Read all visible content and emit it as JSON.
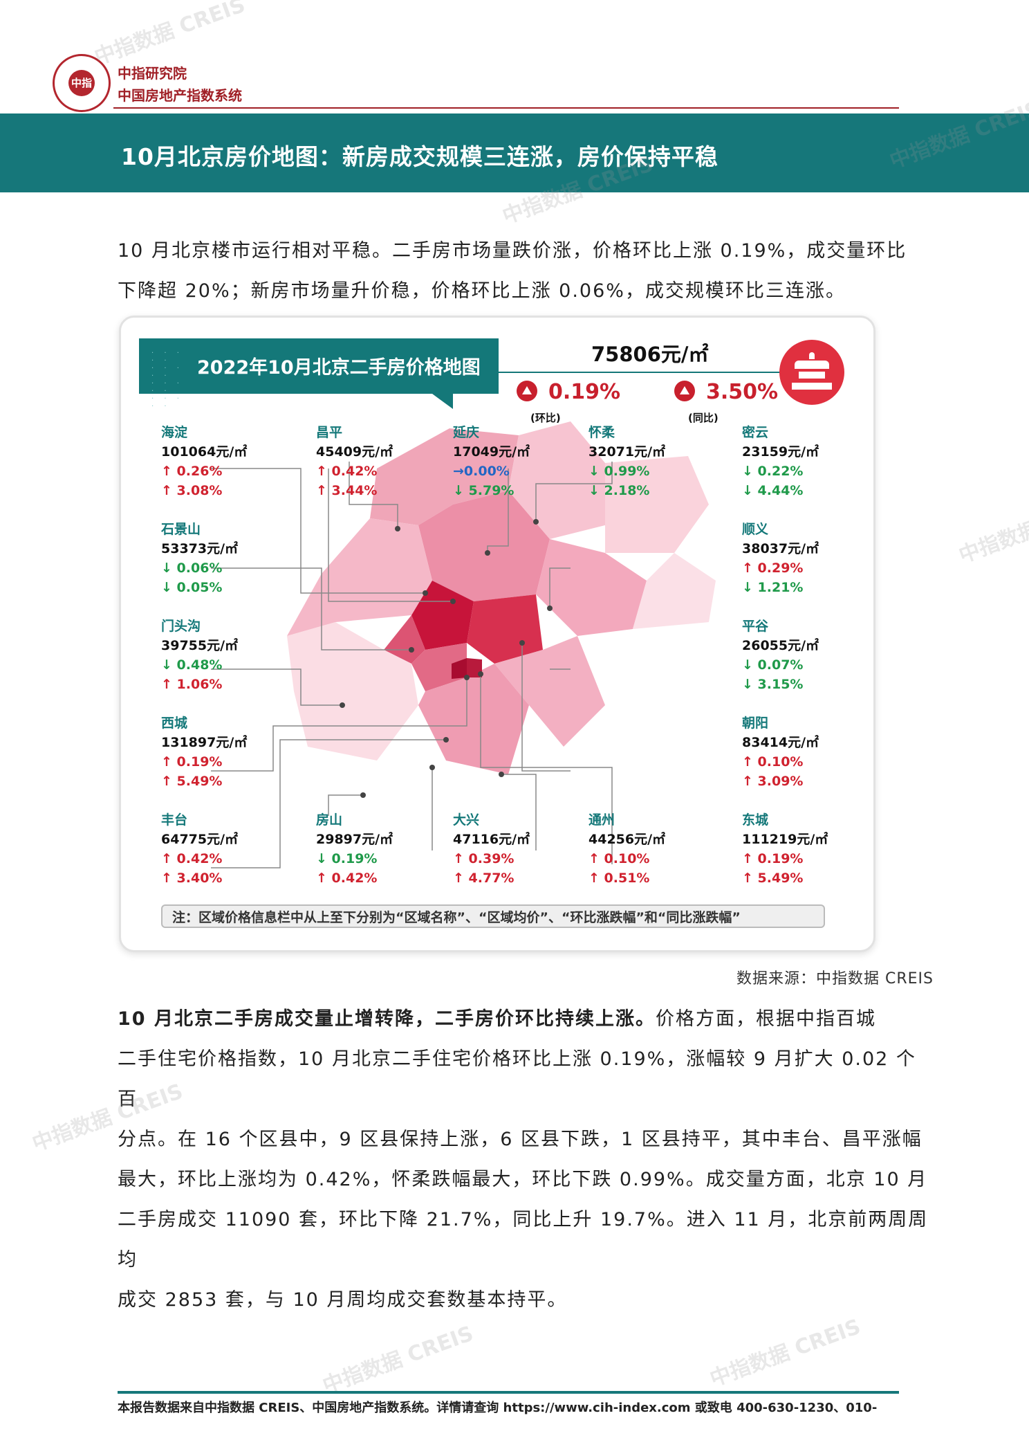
{
  "header": {
    "logo_text": "中指",
    "org_line1": "中指研究院",
    "org_line2": "中国房地产指数系统"
  },
  "title": "10月北京房价地图：新房成交规模三连涨，房价保持平稳",
  "intro": {
    "line1": "10 月北京楼市运行相对平稳。二手房市场量跌价涨，价格环比上涨 0.19%，成交量环比",
    "line2": "下降超 20%；新房市场量升价稳，价格环比上涨 0.06%，成交规模环比三连涨。"
  },
  "map": {
    "banner_title": "2022年10月北京二手房价格地图",
    "avg_price": "75806元/㎡",
    "mom_change": "0.19%",
    "mom_label": "(环比)",
    "yoy_change": "3.50%",
    "yoy_label": "(同比)",
    "districts": [
      {
        "name": "海淀",
        "price": "101064元/㎡",
        "mom": "↑ 0.26%",
        "yoy": "↑ 3.08%"
      },
      {
        "name": "昌平",
        "price": "45409元/㎡",
        "mom": "↑ 0.42%",
        "yoy": "↑ 3.44%"
      },
      {
        "name": "延庆",
        "price": "17049元/㎡",
        "mom": "→0.00%",
        "yoy": "↓ 5.79%"
      },
      {
        "name": "怀柔",
        "price": "32071元/㎡",
        "mom": "↓ 0.99%",
        "yoy": "↓ 2.18%"
      },
      {
        "name": "密云",
        "price": "23159元/㎡",
        "mom": "↓ 0.22%",
        "yoy": "↓ 4.44%"
      },
      {
        "name": "石景山",
        "price": "53373元/㎡",
        "mom": "↓ 0.06%",
        "yoy": "↓ 0.05%"
      },
      {
        "name": "顺义",
        "price": "38037元/㎡",
        "mom": "↑ 0.29%",
        "yoy": "↓ 1.21%"
      },
      {
        "name": "门头沟",
        "price": "39755元/㎡",
        "mom": "↓ 0.48%",
        "yoy": "↑ 1.06%"
      },
      {
        "name": "平谷",
        "price": "26055元/㎡",
        "mom": "↓ 0.07%",
        "yoy": "↓ 3.15%"
      },
      {
        "name": "西城",
        "price": "131897元/㎡",
        "mom": "↑ 0.19%",
        "yoy": "↑ 5.49%"
      },
      {
        "name": "朝阳",
        "price": "83414元/㎡",
        "mom": "↑ 0.10%",
        "yoy": "↑ 3.09%"
      },
      {
        "name": "丰台",
        "price": "64775元/㎡",
        "mom": "↑ 0.42%",
        "yoy": "↑ 3.40%"
      },
      {
        "name": "房山",
        "price": "29897元/㎡",
        "mom": "↓ 0.19%",
        "yoy": "↑ 0.42%"
      },
      {
        "name": "大兴",
        "price": "47116元/㎡",
        "mom": "↑ 0.39%",
        "yoy": "↑ 4.77%"
      },
      {
        "name": "通州",
        "price": "44256元/㎡",
        "mom": "↑ 0.10%",
        "yoy": "↑ 0.51%"
      },
      {
        "name": "东城",
        "price": "111219元/㎡",
        "mom": "↑ 0.19%",
        "yoy": "↑ 5.49%"
      }
    ],
    "note": "注：区域价格信息栏中从上至下分别为“区域名称”、“区域均价”、“环比涨跌幅”和“同比涨跌幅”",
    "colors": {
      "up": "#d0222f",
      "down": "#1f9a4a",
      "flat": "#2266c4",
      "accent": "#147879"
    }
  },
  "source": "数据来源：中指数据 CREIS",
  "body": {
    "lead": "10 月北京二手房成交量止增转降，二手房价环比持续上涨。",
    "line1_rest": "价格方面，根据中指百城",
    "line2": "二手住宅价格指数，10 月北京二手住宅价格环比上涨 0.19%，涨幅较 9 月扩大 0.02 个百",
    "line3": "分点。在 16 个区县中，9 区县保持上涨，6 区县下跌，1 区县持平，其中丰台、昌平涨幅",
    "line4": "最大，环比上涨均为 0.42%，怀柔跌幅最大，环比下跌 0.99%。成交量方面，北京 10 月",
    "line5": "二手房成交 11090 套，环比下降 21.7%，同比上升 19.7%。进入 11 月，北京前两周周均",
    "line6": "成交 2853 套，与 10 月周均成交套数基本持平。"
  },
  "footer": "本报告数据来自中指数据 CREIS、中国房地产指数系统。详情请查询 https://www.cih-index.com 或致电 400-630-1230、010-",
  "watermark": "中指数据 CREIS"
}
